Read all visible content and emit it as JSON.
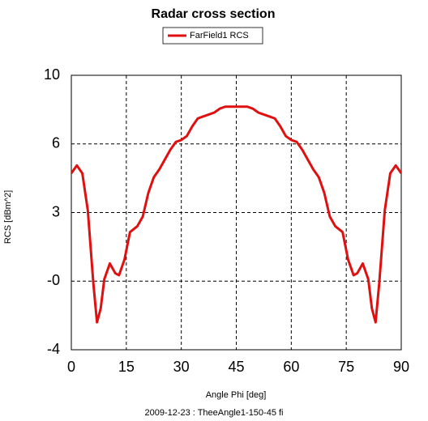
{
  "chart_data": {
    "type": "line",
    "title": "Radar cross section",
    "x_label": "Angle Phi [deg]",
    "y_label": "RCS [dBm^2]",
    "footer": "2009-12-23 : TheeAngle1-150-45 fi",
    "x": [
      0,
      1.5,
      3,
      4.5,
      6,
      7,
      8,
      9,
      10.5,
      12,
      13,
      14.5,
      16,
      18,
      19.5,
      21,
      22.5,
      24,
      25.5,
      27,
      28.5,
      30,
      31.5,
      33,
      34.5,
      36,
      37.5,
      39,
      40.5,
      42,
      43.5,
      45,
      46.5,
      48,
      49.5,
      51,
      52.5,
      54,
      55.5,
      57,
      58.5,
      60,
      61.5,
      63,
      64.5,
      66,
      67.5,
      69,
      70.5,
      72,
      74,
      75.5,
      77,
      78,
      79.5,
      81,
      82,
      83,
      84,
      85.5,
      87,
      88.5,
      90
    ],
    "series": [
      {
        "name": "FarField1 RCS",
        "color": "#e01010",
        "values": [
          5.0,
          5.4,
          5.0,
          3.1,
          -0.6,
          -2.6,
          -1.9,
          -0.4,
          0.4,
          -0.1,
          -0.2,
          0.6,
          2.0,
          2.3,
          2.8,
          4.0,
          4.8,
          5.2,
          5.7,
          6.2,
          6.6,
          6.7,
          6.9,
          7.4,
          7.8,
          7.9,
          8.0,
          8.1,
          8.3,
          8.4,
          8.4,
          8.4,
          8.4,
          8.4,
          8.3,
          8.1,
          8.0,
          7.9,
          7.8,
          7.4,
          6.9,
          6.7,
          6.6,
          6.2,
          5.7,
          5.2,
          4.8,
          4.0,
          2.8,
          2.3,
          2.0,
          0.6,
          -0.2,
          -0.1,
          0.4,
          -0.4,
          -1.9,
          -2.6,
          -0.6,
          3.1,
          5.0,
          5.4,
          5.0
        ]
      }
    ],
    "xlim": [
      0,
      90
    ],
    "xticks": [
      0,
      15,
      30,
      45,
      60,
      75,
      90
    ],
    "ylim": [
      -4,
      10
    ],
    "yticks": [
      -4,
      {
        "value": -0.5,
        "label": "-0"
      },
      3,
      {
        "value": 6.5,
        "label": "6"
      },
      10
    ],
    "grid": true,
    "legend": "top"
  }
}
